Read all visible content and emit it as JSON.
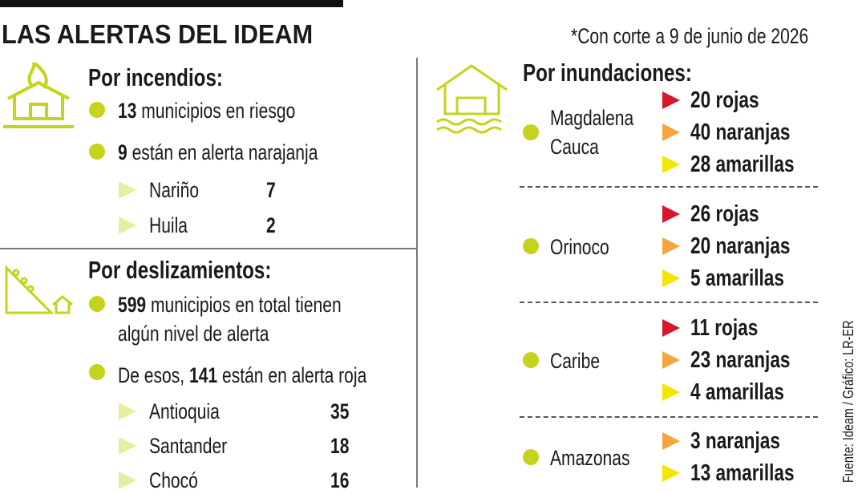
{
  "header": {
    "title": "LAS ALERTAS DEL IDEAM",
    "note": "*Con corte a 9 de junio de 2026"
  },
  "incendios": {
    "title": "Por incendios:",
    "items": [
      {
        "number": 13,
        "text": "municipios en riesgo"
      },
      {
        "number": 9,
        "text": "están en alerta narajanja"
      }
    ],
    "regions": [
      {
        "name": "Nariño",
        "value": 7
      },
      {
        "name": "Huila",
        "value": 2
      }
    ]
  },
  "deslizamientos": {
    "title": "Por deslizamientos:",
    "items": [
      {
        "number": 599,
        "text": "municipios en total tienen algún nivel de alerta"
      },
      {
        "prefix": "De esos,",
        "number": 141,
        "text": "están en alerta roja"
      }
    ],
    "regions": [
      {
        "name": "Antioquia",
        "value": 35
      },
      {
        "name": "Santander",
        "value": 18
      },
      {
        "name": "Chocó",
        "value": 16
      }
    ]
  },
  "inundaciones": {
    "title": "Por inundaciones:",
    "basins": [
      {
        "name": "Magdalena Cauca",
        "alerts": [
          {
            "value": 20,
            "label": "rojas",
            "color": "#d7182a"
          },
          {
            "value": 40,
            "label": "naranjas",
            "color": "#f5a53c"
          },
          {
            "value": 28,
            "label": "amarillas",
            "color": "#f3e600"
          }
        ]
      },
      {
        "name": "Orinoco",
        "alerts": [
          {
            "value": 26,
            "label": "rojas",
            "color": "#d7182a"
          },
          {
            "value": 20,
            "label": "naranjas",
            "color": "#f5a53c"
          },
          {
            "value": 5,
            "label": "amarillas",
            "color": "#f3e600"
          }
        ]
      },
      {
        "name": "Caribe",
        "alerts": [
          {
            "value": 11,
            "label": "rojas",
            "color": "#d7182a"
          },
          {
            "value": 23,
            "label": "naranjas",
            "color": "#f5a53c"
          },
          {
            "value": 4,
            "label": "amarillas",
            "color": "#f3e600"
          }
        ]
      },
      {
        "name": "Amazonas",
        "alerts": [
          {
            "value": 3,
            "label": "naranjas",
            "color": "#f5a53c"
          },
          {
            "value": 13,
            "label": "amarillas",
            "color": "#f3e600"
          }
        ]
      }
    ]
  },
  "source": "Fuente: Ideam / Gráfico: LR-ER"
}
